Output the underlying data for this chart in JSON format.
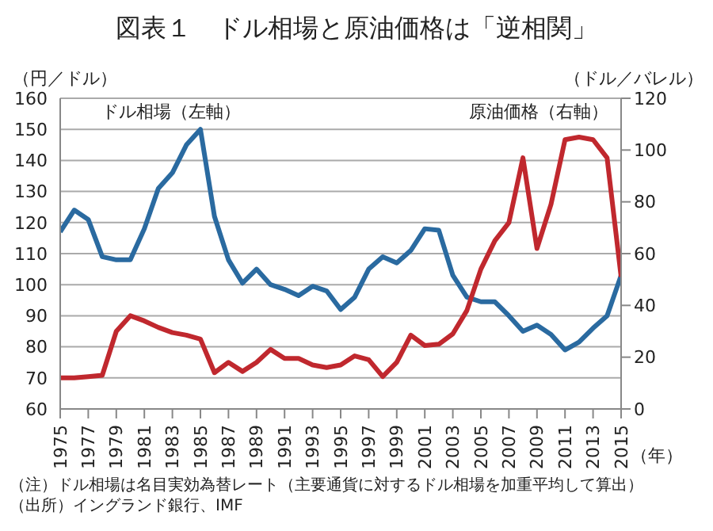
{
  "chart_data": {
    "type": "line",
    "title": "図表１　ドル相場と原油価格は「逆相関」",
    "ylabel": "（円／ドル）",
    "y2label": "（ドル／バレル）",
    "xlabel": "（年）",
    "x": [
      1975,
      1976,
      1977,
      1978,
      1979,
      1980,
      1981,
      1982,
      1983,
      1984,
      1985,
      1986,
      1987,
      1988,
      1989,
      1990,
      1991,
      1992,
      1993,
      1994,
      1995,
      1996,
      1997,
      1998,
      1999,
      2000,
      2001,
      2002,
      2003,
      2004,
      2005,
      2006,
      2007,
      2008,
      2009,
      2010,
      2011,
      2012,
      2013,
      2014,
      2015
    ],
    "series": [
      {
        "name": "ドル相場（左軸）",
        "color": "#2a6aa0",
        "values": [
          117,
          124,
          121,
          109,
          108,
          108,
          118,
          131,
          136,
          145,
          150,
          122,
          108,
          100.5,
          105,
          100,
          98.5,
          96.5,
          99.5,
          98,
          92,
          96,
          105,
          109,
          107,
          111,
          118,
          117.5,
          103,
          96,
          94.5,
          94.5,
          90,
          85,
          87,
          84,
          79,
          81.5,
          86,
          90,
          103
        ]
      },
      {
        "name": "原油価格（右軸）",
        "color": "#c0282e",
        "axis": "y2",
        "values": [
          12,
          12,
          12.5,
          13,
          30,
          36,
          34,
          31.5,
          29.5,
          28.5,
          27,
          14,
          18,
          14.5,
          18,
          23,
          19.5,
          19.5,
          17,
          16,
          17,
          20.5,
          19,
          12.5,
          18,
          28.5,
          24.5,
          25,
          29,
          38,
          54,
          65,
          72,
          97,
          62,
          79,
          104,
          105,
          104,
          97,
          51
        ]
      }
    ],
    "xlim": [
      1975,
      2015
    ],
    "xticks": [
      1975,
      1977,
      1979,
      1981,
      1983,
      1985,
      1987,
      1989,
      1991,
      1993,
      1995,
      1997,
      1999,
      2001,
      2003,
      2005,
      2007,
      2009,
      2011,
      2013,
      2015
    ],
    "ylim": [
      60,
      160
    ],
    "yticks": [
      60,
      70,
      80,
      90,
      100,
      110,
      120,
      130,
      140,
      150,
      160
    ],
    "y2lim": [
      0,
      120
    ],
    "y2ticks": [
      0,
      20,
      40,
      60,
      80,
      100,
      120
    ],
    "grid": "y",
    "legend": false,
    "marker": "none",
    "line_style": "solid",
    "annotations": [
      "（注）ドル相場は名目実効為替レート（主要通貨に対するドル相場を加重平均して算出）",
      "（出所）イングランド銀行、IMF"
    ]
  }
}
